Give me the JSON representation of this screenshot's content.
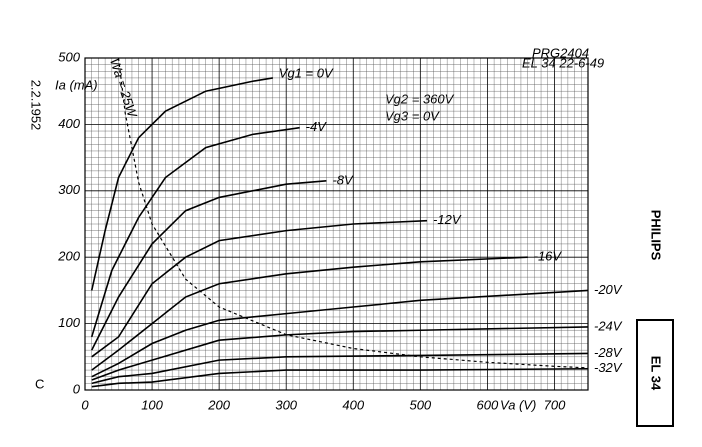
{
  "chart_data": {
    "type": "line",
    "ylabel": "Ia (mA)",
    "xlabel": "Va (V)",
    "xlim": [
      0,
      750
    ],
    "ylim": [
      0,
      500
    ],
    "xticks": [
      0,
      100,
      200,
      300,
      400,
      500,
      600,
      700
    ],
    "yticks": [
      0,
      100,
      200,
      300,
      400,
      500
    ],
    "grid": true,
    "series": [
      {
        "name": "Vg1 = 0V",
        "color": "#000000",
        "x": [
          10,
          30,
          50,
          80,
          120,
          180,
          250,
          280
        ],
        "values": [
          150,
          240,
          320,
          380,
          420,
          450,
          465,
          470
        ]
      },
      {
        "name": "-4V",
        "color": "#000000",
        "x": [
          10,
          40,
          80,
          120,
          180,
          250,
          320
        ],
        "values": [
          80,
          180,
          260,
          320,
          365,
          385,
          395
        ]
      },
      {
        "name": "-8V",
        "color": "#000000",
        "x": [
          10,
          50,
          100,
          150,
          200,
          300,
          360
        ],
        "values": [
          60,
          140,
          220,
          270,
          290,
          310,
          315
        ]
      },
      {
        "name": "-12V",
        "color": "#000000",
        "x": [
          10,
          50,
          100,
          150,
          200,
          300,
          400,
          510
        ],
        "values": [
          50,
          80,
          160,
          200,
          225,
          240,
          250,
          255
        ]
      },
      {
        "name": "-16V",
        "color": "#000000",
        "x": [
          10,
          50,
          100,
          150,
          200,
          300,
          400,
          500,
          660
        ],
        "values": [
          30,
          60,
          100,
          140,
          160,
          175,
          185,
          193,
          200
        ]
      },
      {
        "name": "-20V",
        "color": "#000000",
        "x": [
          10,
          50,
          100,
          150,
          200,
          300,
          400,
          500,
          750
        ],
        "values": [
          20,
          40,
          70,
          90,
          105,
          115,
          125,
          135,
          150
        ]
      },
      {
        "name": "-24V",
        "color": "#000000",
        "x": [
          10,
          50,
          100,
          200,
          300,
          400,
          500,
          750
        ],
        "values": [
          15,
          30,
          45,
          75,
          83,
          88,
          90,
          95
        ]
      },
      {
        "name": "-28V",
        "color": "#000000",
        "x": [
          10,
          50,
          100,
          200,
          300,
          500,
          750
        ],
        "values": [
          10,
          20,
          25,
          45,
          50,
          52,
          55
        ]
      },
      {
        "name": "-32V",
        "color": "#000000",
        "x": [
          10,
          50,
          100,
          200,
          300,
          500,
          750
        ],
        "values": [
          5,
          10,
          12,
          25,
          30,
          30,
          32
        ]
      },
      {
        "name": "Wa = 25W",
        "color": "#000000",
        "dashed": true,
        "x": [
          50,
          60,
          80,
          100,
          150,
          200,
          300,
          400,
          500,
          600,
          700,
          750
        ],
        "values": [
          500,
          417,
          312.5,
          250,
          167,
          125,
          83.3,
          62.5,
          50,
          41.7,
          35.7,
          33.3
        ]
      }
    ],
    "annotations": [
      "Vg2 = 360V",
      "Vg3 = 0V",
      "PRG2404",
      "EL 34 22-6-49",
      "2.2.1952",
      "C",
      "PHILIPS",
      "EL 34"
    ]
  }
}
